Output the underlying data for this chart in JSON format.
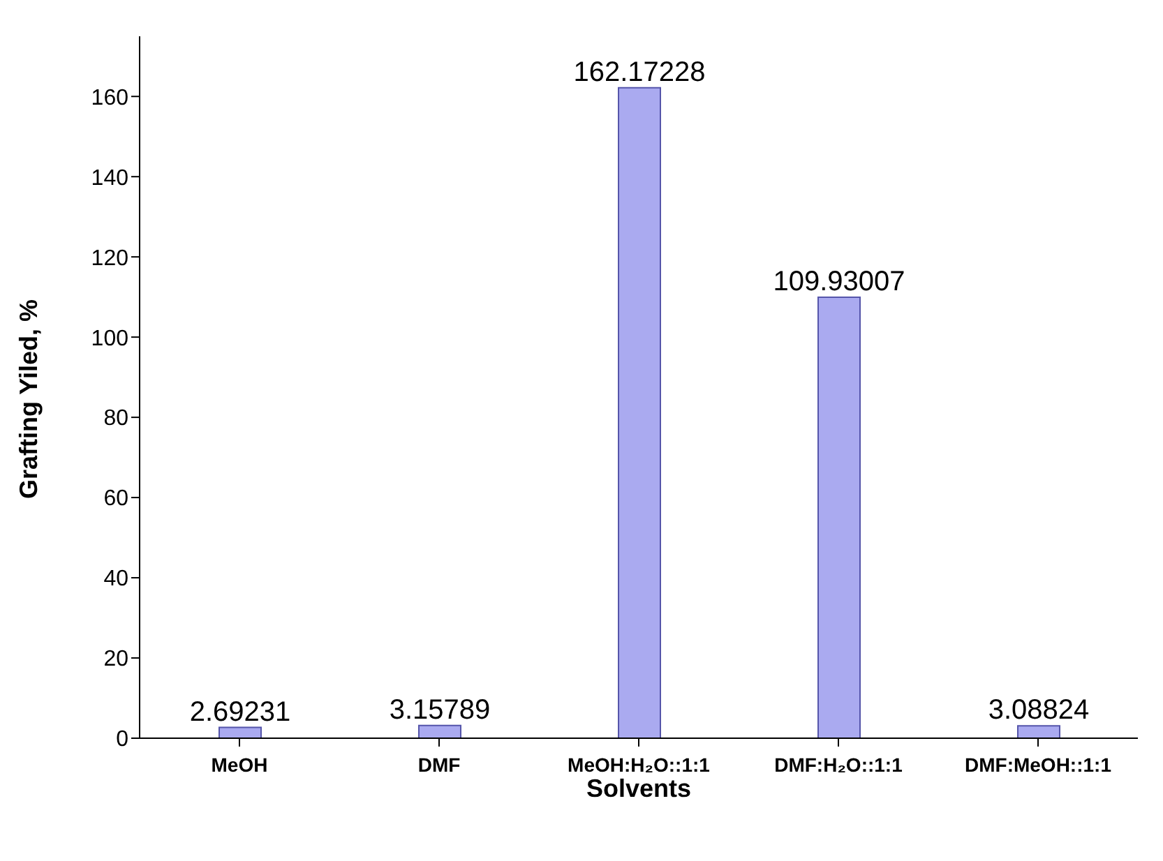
{
  "chart_data": {
    "type": "bar",
    "xlabel": "Solvents",
    "ylabel": "Grafting Yiled, %",
    "categories": [
      "MeOH",
      "DMF",
      "MeOH:H₂O::1:1",
      "DMF:H₂O::1:1",
      "DMF:MeOH::1:1"
    ],
    "values": [
      2.69231,
      3.15789,
      162.17228,
      109.93007,
      3.08824
    ],
    "color": "#aaaaf0",
    "ylim": [
      0,
      175
    ],
    "yticks": [
      0,
      20,
      40,
      60,
      80,
      100,
      120,
      140,
      160
    ],
    "data_labels": true,
    "grid": false,
    "legend": false
  }
}
